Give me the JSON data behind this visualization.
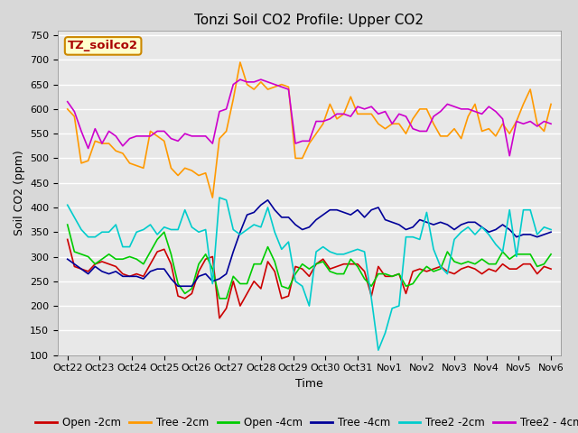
{
  "title": "Tonzi Soil CO2 Profile: Upper CO2",
  "xlabel": "Time",
  "ylabel": "Soil CO2 (ppm)",
  "ylim": [
    100,
    760
  ],
  "yticks": [
    100,
    150,
    200,
    250,
    300,
    350,
    400,
    450,
    500,
    550,
    600,
    650,
    700,
    750
  ],
  "watermark_label": "TZ_soilco2",
  "x_tick_labels": [
    "Oct 22",
    "Oct 23",
    "Oct 24",
    "Oct 25",
    "Oct 26",
    "Oct 27",
    "Oct 28",
    "Oct 29",
    "Oct 30",
    "Oct 31",
    "Nov 1",
    "Nov 2",
    "Nov 3",
    "Nov 4",
    "Nov 5",
    "Nov 6"
  ],
  "series": {
    "Open -2cm": {
      "color": "#cc0000",
      "linewidth": 1.2,
      "data": [
        335,
        280,
        275,
        270,
        285,
        290,
        285,
        280,
        265,
        260,
        265,
        260,
        285,
        310,
        315,
        285,
        220,
        215,
        225,
        270,
        295,
        300,
        175,
        195,
        250,
        200,
        225,
        250,
        235,
        290,
        270,
        215,
        220,
        280,
        275,
        260,
        285,
        295,
        275,
        280,
        285,
        285,
        285,
        270,
        220,
        280,
        260,
        260,
        265,
        225,
        270,
        275,
        270,
        275,
        280,
        270,
        265,
        275,
        280,
        275,
        265,
        275,
        270,
        285,
        275,
        275,
        285,
        285,
        265,
        280,
        275
      ]
    },
    "Tree -2cm": {
      "color": "#ff9900",
      "linewidth": 1.2,
      "data": [
        600,
        585,
        490,
        495,
        535,
        530,
        530,
        515,
        510,
        490,
        485,
        480,
        555,
        545,
        535,
        480,
        465,
        480,
        475,
        465,
        470,
        420,
        540,
        555,
        620,
        695,
        650,
        640,
        655,
        640,
        645,
        650,
        645,
        500,
        500,
        530,
        550,
        570,
        610,
        580,
        590,
        625,
        590,
        590,
        590,
        570,
        560,
        570,
        570,
        550,
        580,
        600,
        600,
        570,
        545,
        545,
        560,
        540,
        585,
        610,
        555,
        560,
        545,
        570,
        550,
        575,
        610,
        640,
        570,
        555,
        610
      ]
    },
    "Open -4cm": {
      "color": "#00cc00",
      "linewidth": 1.2,
      "data": [
        365,
        310,
        305,
        300,
        285,
        295,
        305,
        295,
        295,
        300,
        295,
        285,
        310,
        335,
        350,
        305,
        245,
        225,
        235,
        285,
        305,
        275,
        215,
        215,
        260,
        245,
        245,
        285,
        285,
        320,
        290,
        240,
        235,
        265,
        285,
        275,
        285,
        290,
        270,
        265,
        265,
        295,
        280,
        255,
        240,
        265,
        265,
        260,
        265,
        240,
        245,
        265,
        280,
        270,
        275,
        310,
        290,
        285,
        290,
        285,
        295,
        285,
        285,
        310,
        295,
        305,
        305,
        305,
        280,
        285,
        305
      ]
    },
    "Tree -4cm": {
      "color": "#000099",
      "linewidth": 1.2,
      "data": [
        295,
        285,
        275,
        265,
        280,
        270,
        265,
        270,
        260,
        260,
        260,
        255,
        270,
        275,
        275,
        255,
        240,
        240,
        240,
        260,
        265,
        250,
        255,
        265,
        310,
        350,
        385,
        390,
        405,
        415,
        395,
        380,
        380,
        365,
        355,
        360,
        375,
        385,
        395,
        395,
        390,
        385,
        395,
        380,
        395,
        400,
        375,
        370,
        365,
        355,
        360,
        375,
        370,
        365,
        370,
        365,
        355,
        365,
        370,
        370,
        360,
        350,
        355,
        365,
        355,
        340,
        345,
        345,
        340,
        345,
        350
      ]
    },
    "Tree2 -2cm": {
      "color": "#00cccc",
      "linewidth": 1.2,
      "data": [
        405,
        380,
        355,
        340,
        340,
        350,
        350,
        365,
        320,
        320,
        350,
        355,
        365,
        345,
        360,
        355,
        355,
        395,
        360,
        350,
        355,
        245,
        420,
        415,
        355,
        345,
        355,
        365,
        360,
        400,
        350,
        315,
        330,
        250,
        240,
        200,
        310,
        320,
        310,
        305,
        305,
        310,
        315,
        310,
        215,
        110,
        145,
        195,
        200,
        340,
        340,
        335,
        390,
        315,
        280,
        265,
        335,
        350,
        360,
        345,
        360,
        345,
        325,
        310,
        395,
        300,
        395,
        395,
        345,
        360,
        355
      ]
    },
    "Tree2 - 4cm": {
      "color": "#cc00cc",
      "linewidth": 1.2,
      "data": [
        615,
        595,
        555,
        520,
        560,
        530,
        555,
        545,
        525,
        540,
        545,
        545,
        545,
        555,
        555,
        540,
        535,
        550,
        545,
        545,
        545,
        530,
        595,
        600,
        650,
        660,
        655,
        655,
        660,
        655,
        650,
        645,
        640,
        530,
        535,
        535,
        575,
        575,
        580,
        590,
        590,
        585,
        605,
        600,
        605,
        590,
        595,
        570,
        590,
        585,
        560,
        555,
        555,
        585,
        595,
        610,
        605,
        600,
        600,
        595,
        590,
        605,
        595,
        580,
        505,
        575,
        570,
        575,
        565,
        575,
        570
      ]
    }
  },
  "fig_bg_color": "#d8d8d8",
  "plot_bg_color": "#e8e8e8",
  "grid_color": "#ffffff",
  "title_fontsize": 11,
  "axis_fontsize": 9,
  "tick_fontsize": 8,
  "legend_fontsize": 8.5
}
